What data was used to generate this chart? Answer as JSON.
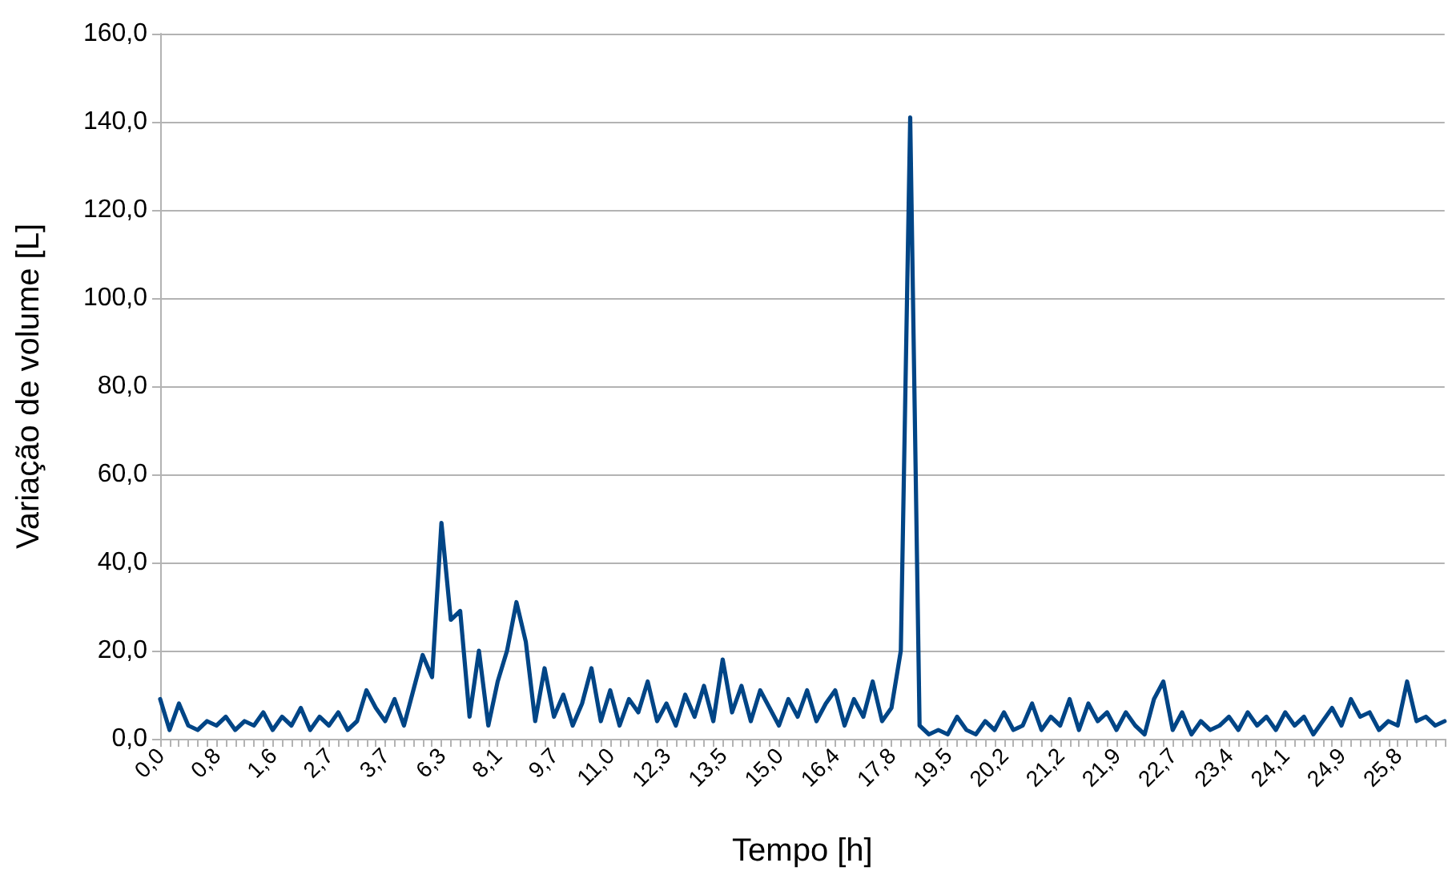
{
  "chart_data": {
    "type": "line",
    "xlabel": "Tempo [h]",
    "ylabel": "Variação de volume [L]",
    "categories": [
      "0,0",
      null,
      null,
      null,
      null,
      null,
      "0,8",
      null,
      null,
      null,
      null,
      null,
      "1,6",
      null,
      null,
      null,
      null,
      null,
      "2,7",
      null,
      null,
      null,
      null,
      null,
      "3,7",
      null,
      null,
      null,
      null,
      null,
      "6,3",
      null,
      null,
      null,
      null,
      null,
      "8,1",
      null,
      null,
      null,
      null,
      null,
      "9,7",
      null,
      null,
      null,
      null,
      null,
      "11,0",
      null,
      null,
      null,
      null,
      null,
      "12,3",
      null,
      null,
      null,
      null,
      null,
      "13,5",
      null,
      null,
      null,
      null,
      null,
      "15,0",
      null,
      null,
      null,
      null,
      null,
      "16,4",
      null,
      null,
      null,
      null,
      null,
      "17,8",
      null,
      null,
      null,
      null,
      null,
      "19,5",
      null,
      null,
      null,
      null,
      null,
      "20,2",
      null,
      null,
      null,
      null,
      null,
      "21,2",
      null,
      null,
      null,
      null,
      null,
      "21,9",
      null,
      null,
      null,
      null,
      null,
      "22,7",
      null,
      null,
      null,
      null,
      null,
      "23,4",
      null,
      null,
      null,
      null,
      null,
      "24,1",
      null,
      null,
      null,
      null,
      null,
      "24,9",
      null,
      null,
      null,
      null,
      null,
      "25,8",
      null,
      null,
      null,
      null,
      null
    ],
    "series": [
      {
        "color": "#004586",
        "values": [
          9,
          2,
          8,
          3,
          2,
          4,
          3,
          5,
          2,
          4,
          3,
          6,
          2,
          5,
          3,
          7,
          2,
          5,
          3,
          6,
          2,
          4,
          11,
          7,
          4,
          9,
          3,
          11,
          19,
          14,
          49,
          27,
          29,
          5,
          20,
          3,
          13,
          20,
          31,
          22,
          4,
          16,
          5,
          10,
          3,
          8,
          16,
          4,
          11,
          3,
          9,
          6,
          13,
          4,
          8,
          3,
          10,
          5,
          12,
          4,
          18,
          6,
          12,
          4,
          11,
          7,
          3,
          9,
          5,
          11,
          4,
          8,
          11,
          3,
          9,
          5,
          13,
          4,
          7,
          20,
          141,
          3,
          1,
          2,
          1,
          5,
          2,
          1,
          4,
          2,
          6,
          2,
          3,
          8,
          2,
          5,
          3,
          9,
          2,
          8,
          4,
          6,
          2,
          6,
          3,
          1,
          9,
          13,
          2,
          6,
          1,
          4,
          2,
          3,
          5,
          2,
          6,
          3,
          5,
          2,
          6,
          3,
          5,
          1,
          4,
          7,
          3,
          9,
          5,
          6,
          2,
          4,
          3,
          13,
          4,
          5,
          3,
          4
        ]
      }
    ],
    "ylim": [
      0,
      160
    ],
    "yticks": [
      {
        "value": 0,
        "label": "0,0"
      },
      {
        "value": 20,
        "label": "20,0"
      },
      {
        "value": 40,
        "label": "40,0"
      },
      {
        "value": 60,
        "label": "60,0"
      },
      {
        "value": 80,
        "label": "80,0"
      },
      {
        "value": 100,
        "label": "100,0"
      },
      {
        "value": 120,
        "label": "120,0"
      },
      {
        "value": 140,
        "label": "140,0"
      },
      {
        "value": 160,
        "label": "160,0"
      }
    ],
    "grid": "y",
    "marker": "none",
    "line_style": "solid"
  }
}
